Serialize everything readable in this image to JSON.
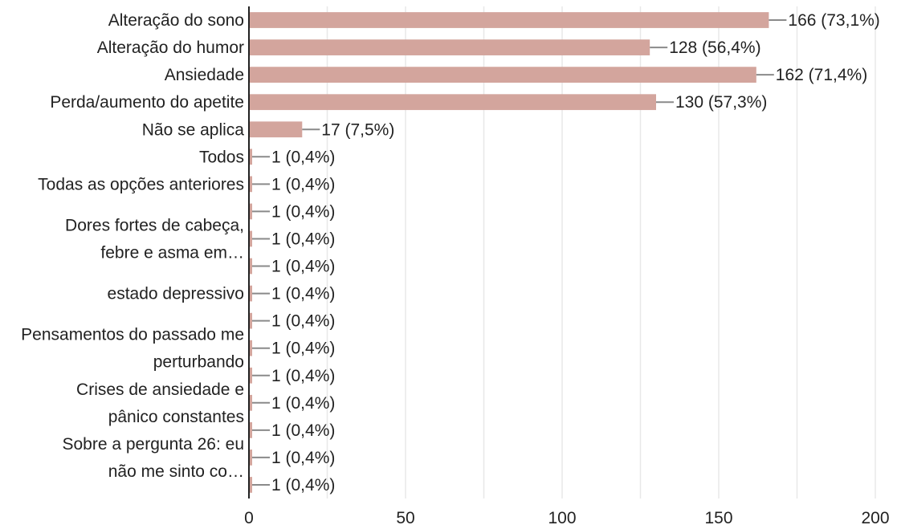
{
  "chart_data": {
    "type": "bar",
    "orientation": "horizontal",
    "categories": [
      "Alteração do sono",
      "Alteração do humor",
      "Ansiedade",
      "Perda/aumento do apetite",
      "Não se aplica",
      "Todos",
      "Todas as opções anteriores",
      "",
      "Dores fortes de cabeça, febre e asma em…",
      "",
      "estado depressivo",
      "",
      "Pensamentos do passado me perturbando",
      "",
      "Crises de ansiedade e pânico constantes",
      "",
      "Sobre a pergunta 26: eu não me sinto co…",
      ""
    ],
    "values": [
      166,
      128,
      162,
      130,
      17,
      1,
      1,
      1,
      1,
      1,
      1,
      1,
      1,
      1,
      1,
      1,
      1,
      1
    ],
    "data_labels": [
      "166 (73,1%)",
      "128 (56,4%)",
      "162 (71,4%)",
      "130 (57,3%)",
      "17 (7,5%)",
      "1 (0,4%)",
      "1 (0,4%)",
      "1 (0,4%)",
      "1 (0,4%)",
      "1 (0,4%)",
      "1 (0,4%)",
      "1 (0,4%)",
      "1 (0,4%)",
      "1 (0,4%)",
      "1 (0,4%)",
      "1 (0,4%)",
      "1 (0,4%)",
      "1 (0,4%)"
    ],
    "xlim": [
      0,
      200
    ],
    "xticks": [
      0,
      50,
      100,
      150,
      200
    ],
    "grid": true,
    "colors": {
      "bar": "#d3a59d",
      "leader": "#8a8a8a",
      "axis": "#222222",
      "grid": "#e8e8e8"
    }
  }
}
